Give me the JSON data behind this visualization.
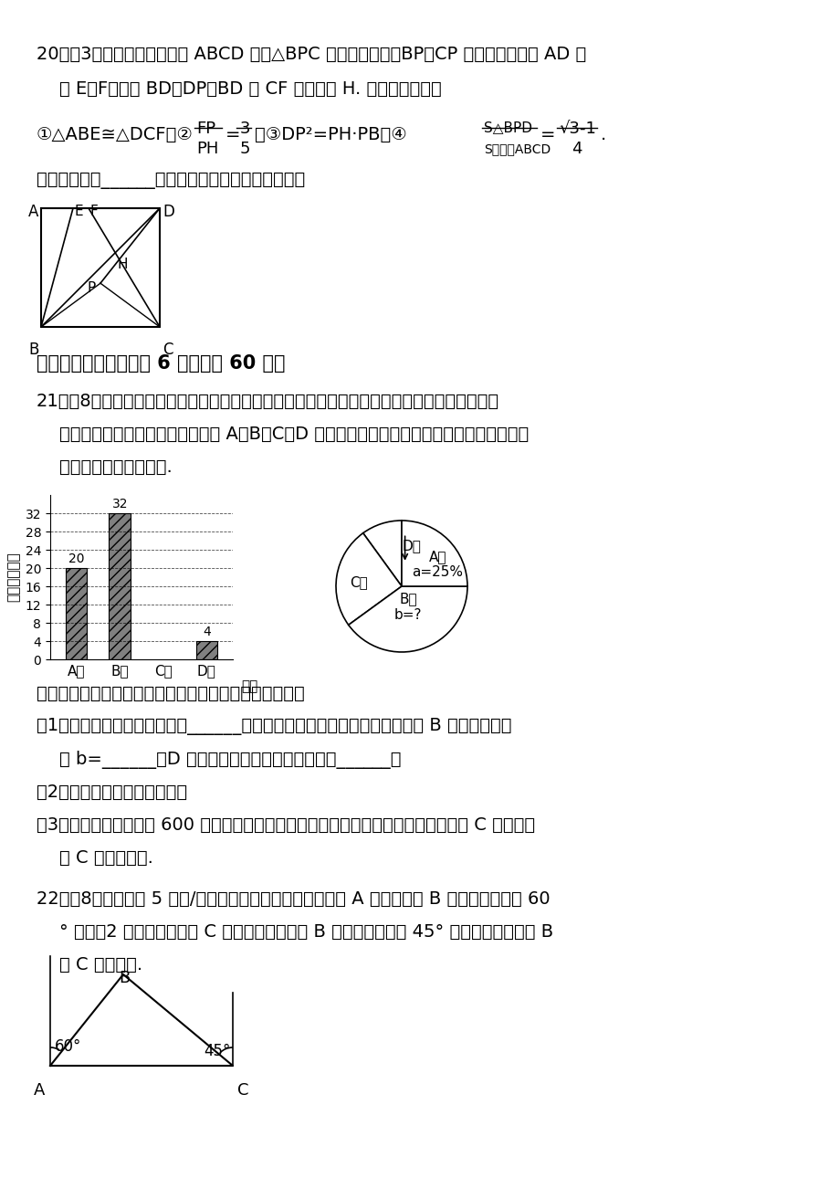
{
  "bg_color": "#ffffff",
  "text_color": "#000000",
  "bar_color": "#808080",
  "bar_hatch": "///",
  "q20_line1": "20．（3分）如图，在正方形 ABCD 中，△BPC 是等边三角形， BP、CP 的延长线分别交 AD 于",
  "q20_line2": "    点 E、F，连结 BD、DP， BD 与 CF 相交于点 H. 给出下列结论：",
  "q21_title": "三、解答题（本大题共 6 小题，共 60 分）",
  "q21_line1": "21．（8分）某校课题研究小组对本校九年级全体同学体育测试情况进行调查，他们随机抽查部",
  "q21_line2": "    分同学体育测试成绩（由高到低分 A、B、C、D 四个等级），根据调查的数据绘制成如下的条",
  "q21_line3": "    形统计图和扇形统计图.",
  "bar_ylabel": "频数（人数）",
  "bar_categories": [
    "A级",
    "B级",
    "C级",
    "D级"
  ],
  "bar_xlabel": "等级",
  "bar_values": [
    20,
    32,
    null,
    4
  ],
  "bar_yticks": [
    0,
    4,
    8,
    12,
    16,
    20,
    24,
    28,
    32
  ],
  "pie_labels": [
    "D级",
    "A级\na=25%",
    "B级\nb=?",
    "C级"
  ],
  "q_correct": "其中正确的是______．（写出所有正确结论的序号）",
  "q21_q1": "请根据以上不完整的统计图提供的信息，解答下列问题：",
  "q21_q1a": "（1）该课题研究小组共抽查了______名同学的体育测试成绩；扇形统计图中 B 级所占的百分",
  "q21_q1b": "    比 b=______，D 级所在小扇形的圆心角的大小为______；",
  "q21_q2": "（2）请直接补全条形统计图；",
  "q21_q3": "（3）若该校九年级共有 600 名同学，请估计该校九年级同学体育测试达标（测试成绩 C 级以上，",
  "q21_q3b": "    含 C 级）的人数.",
  "q22_line1": "22．（8分）海船以 5 海里/小时的速度向正东方向行驶，在 A 处看见灯塔 B 在海船的北偏东 60",
  "q22_line2": "    ° 方向，2 小时后船行驶到 C 处，发现此时灯塔 B 在海船的北偏西 45° 方向，求此时灯塔 B",
  "q22_line3": "    到 C 处的距离."
}
